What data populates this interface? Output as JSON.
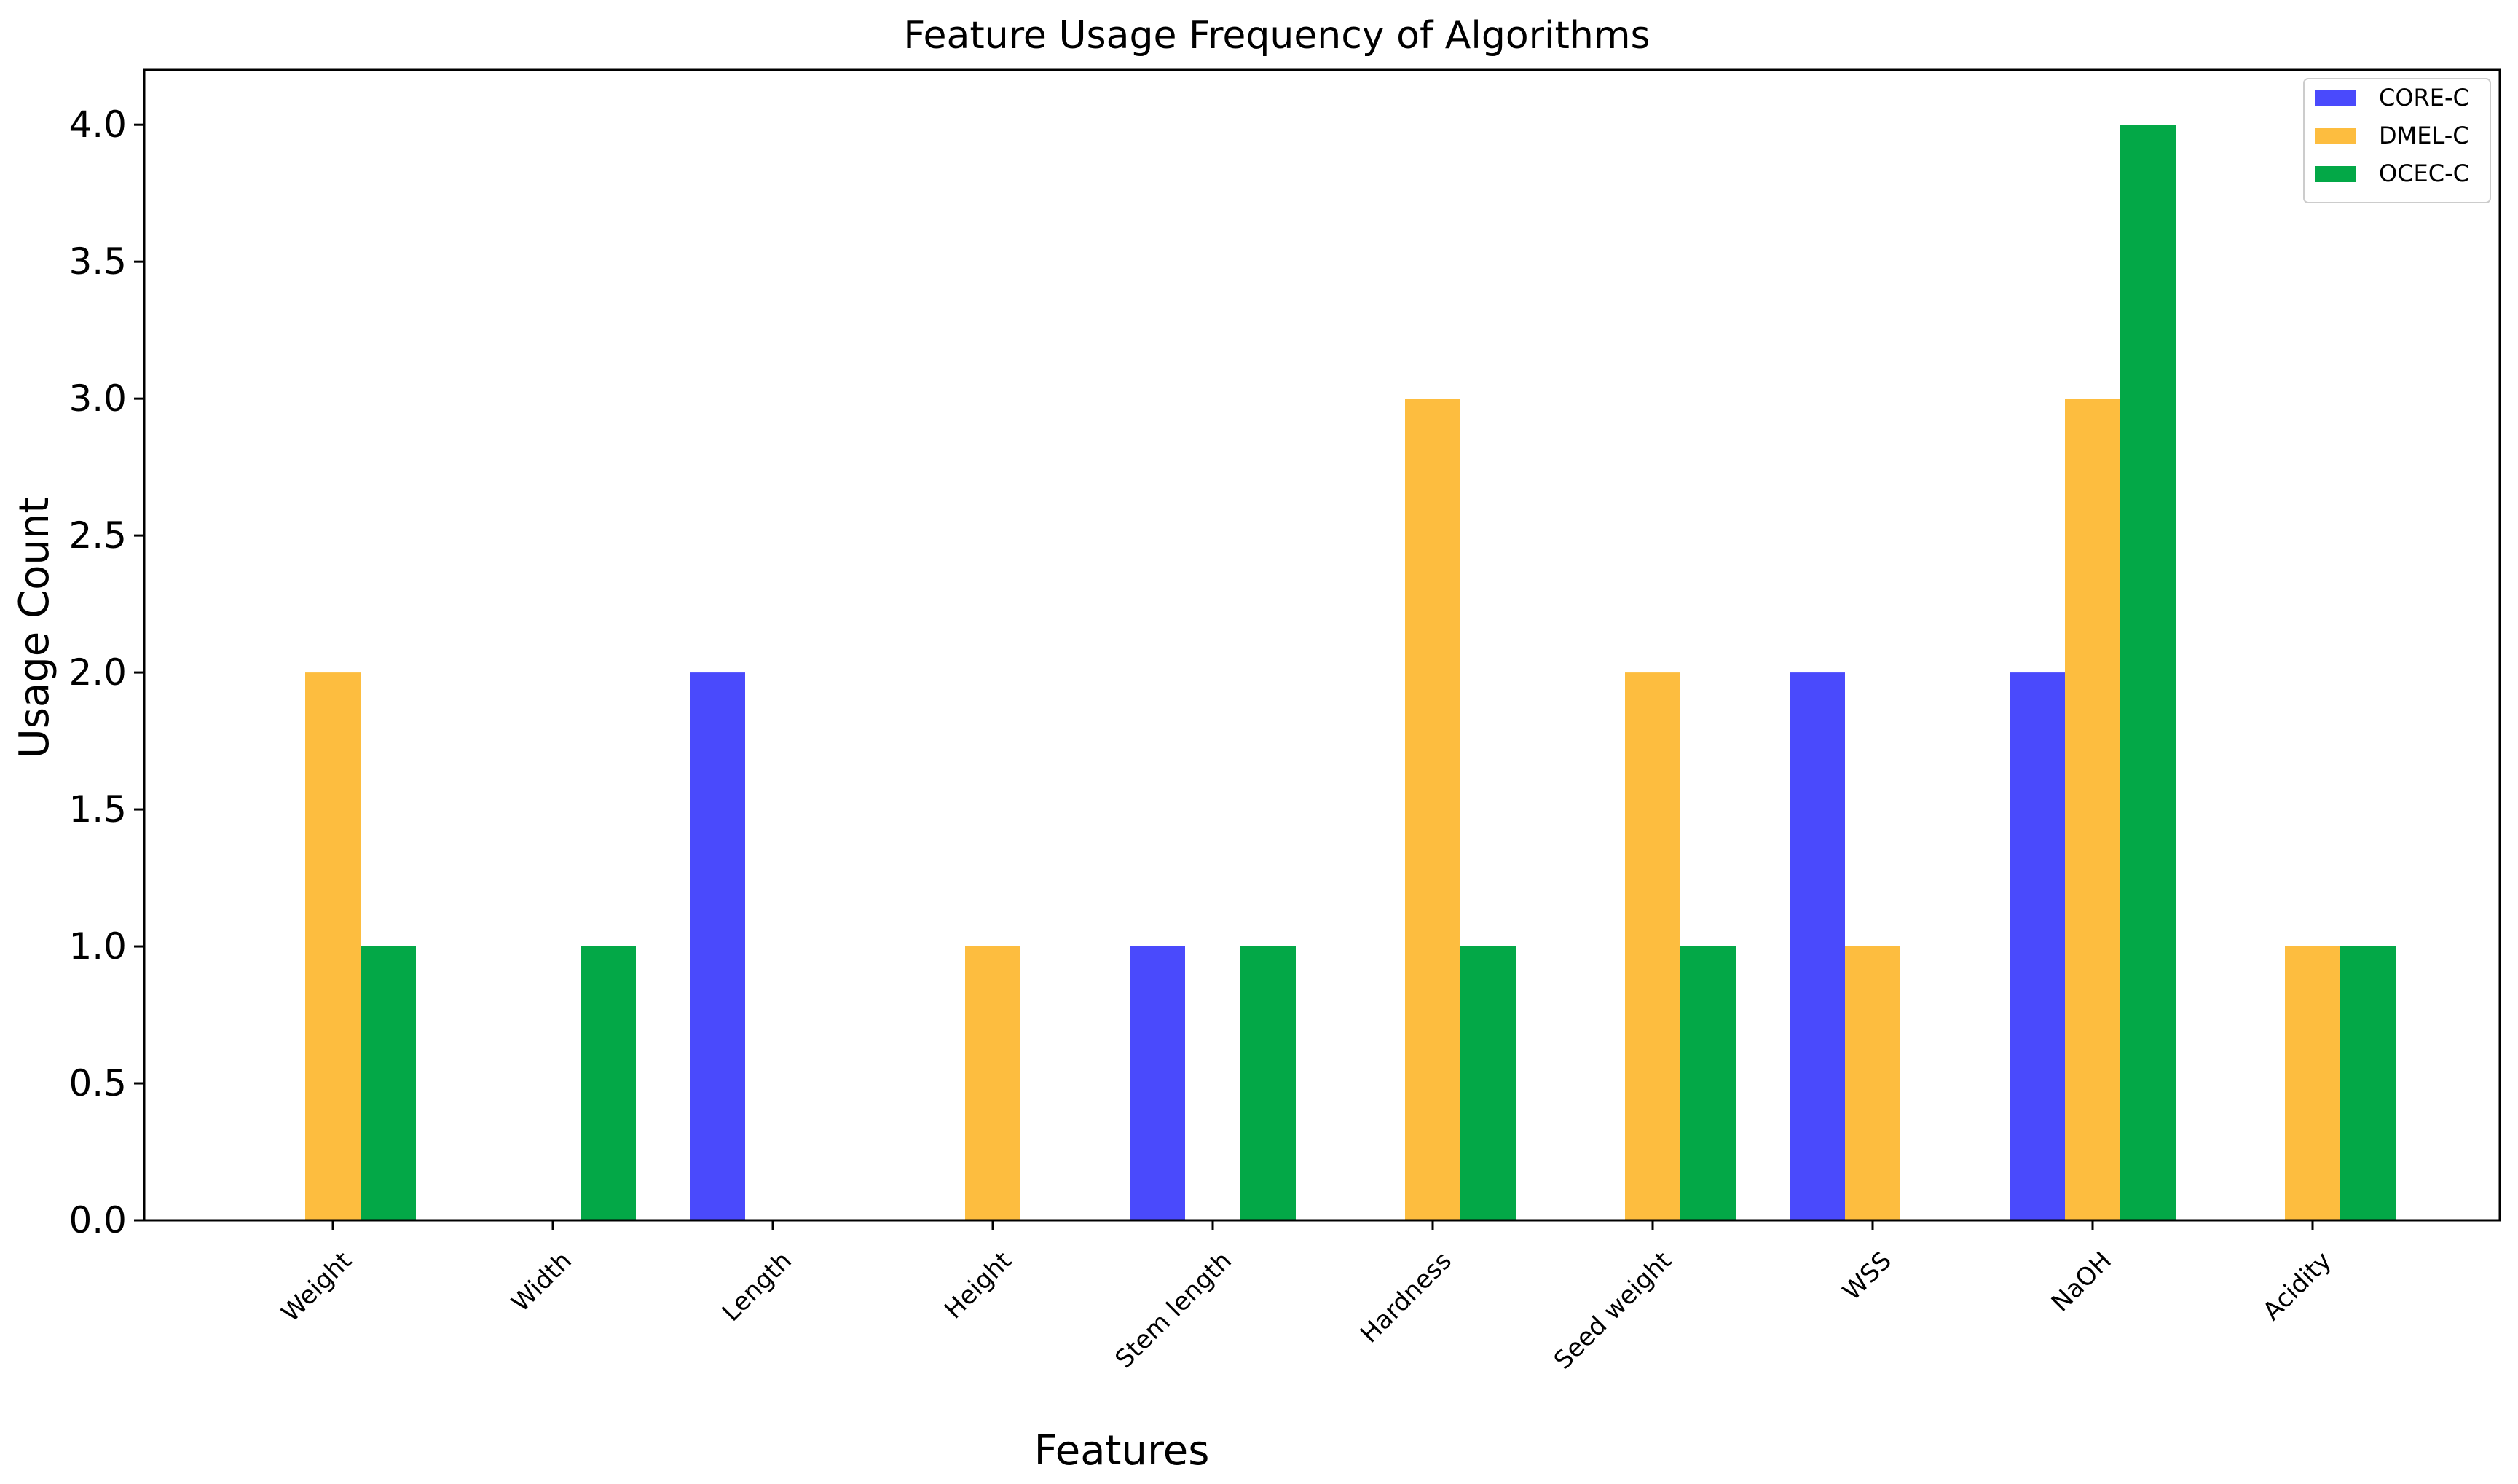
{
  "chart_data": {
    "type": "bar",
    "title": "Feature Usage Frequency of Algorithms",
    "xlabel": "Features",
    "ylabel": "Usage Count",
    "categories": [
      "Weight",
      "Width",
      "Length",
      "Height",
      "Stem length",
      "Hardness",
      "Seed weight",
      "WSS",
      "NaOH",
      "Acidity"
    ],
    "series": [
      {
        "name": "CORE-C",
        "color": "#4a4afc",
        "values": [
          0,
          0,
          2,
          0,
          1,
          0,
          0,
          2,
          2,
          0
        ]
      },
      {
        "name": "DMEL-C",
        "color": "#fdbd3f",
        "values": [
          2,
          0,
          0,
          1,
          0,
          3,
          2,
          1,
          3,
          1
        ]
      },
      {
        "name": "OCEC-C",
        "color": "#03a847",
        "values": [
          1,
          1,
          0,
          0,
          1,
          1,
          1,
          0,
          4,
          1
        ]
      }
    ],
    "ylim": [
      0,
      4.2
    ],
    "yticks": [
      "0.0",
      "0.5",
      "1.0",
      "1.5",
      "2.0",
      "2.5",
      "3.0",
      "3.5",
      "4.0"
    ],
    "grid": false,
    "legend_position": "top-right"
  }
}
